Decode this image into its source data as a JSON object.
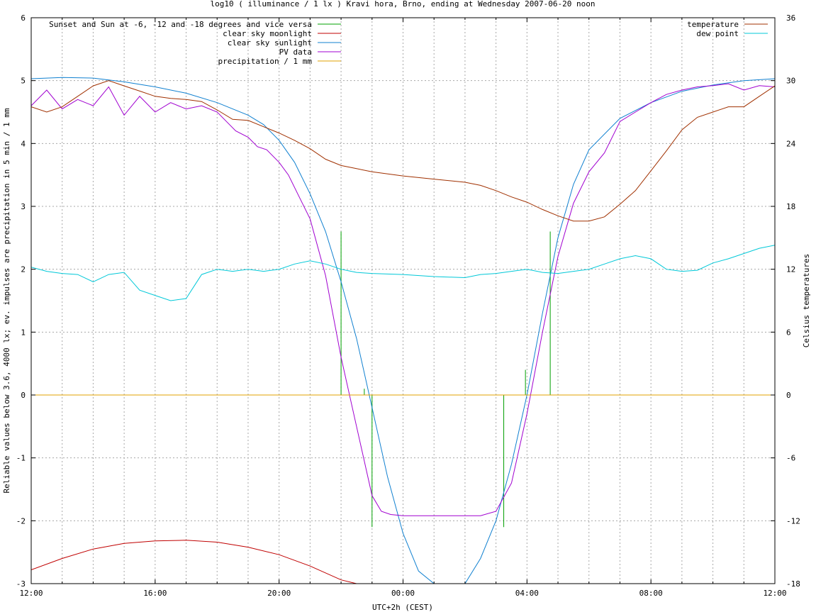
{
  "chart_data": {
    "type": "line",
    "title": "log10 ( illuminance / 1 lx ) Kravi hora, Brno, ending at Wednesday 2007-06-20 noon",
    "xlabel": "UTC+2h (CEST)",
    "ylabel": "Reliable values below 3.6, 4000 lx; ev. impulses are precipitation in 5 min / 1 mm",
    "y2label": "Celsius temperatures",
    "x_unit": "hours since 12:00 (UTC+2h)",
    "xlim": [
      0,
      24
    ],
    "ylim": [
      -3,
      6
    ],
    "y2lim": [
      -18,
      36
    ],
    "x_ticks": [
      {
        "x": 0,
        "label": "12:00"
      },
      {
        "x": 4,
        "label": "16:00"
      },
      {
        "x": 8,
        "label": "20:00"
      },
      {
        "x": 12,
        "label": "00:00"
      },
      {
        "x": 16,
        "label": "04:00"
      },
      {
        "x": 20,
        "label": "08:00"
      },
      {
        "x": 24,
        "label": "12:00"
      }
    ],
    "y_ticks": [
      -3,
      -2,
      -1,
      0,
      1,
      2,
      3,
      4,
      5,
      6
    ],
    "y2_ticks": [
      -18,
      -12,
      -6,
      0,
      6,
      12,
      18,
      24,
      30,
      36
    ],
    "grid": true,
    "legend_left": "top-left",
    "legend_right": "top-right",
    "series": [
      {
        "name": "Sunset and Sun at -6, -12 and -18 degrees and vice versa",
        "color": "#00a000",
        "axis": "y",
        "kind": "impulse",
        "impulses": [
          {
            "x": 10.0,
            "y": 2.6
          },
          {
            "x": 10.75,
            "y": 0.1
          },
          {
            "x": 11.0,
            "y": -2.1
          },
          {
            "x": 15.25,
            "y": -2.1
          },
          {
            "x": 15.95,
            "y": 0.4
          },
          {
            "x": 16.75,
            "y": 2.6
          }
        ]
      },
      {
        "name": "clear sky moonlight",
        "color": "#c00000",
        "axis": "y",
        "x": [
          0,
          1,
          2,
          3,
          4,
          5,
          6,
          7,
          8,
          9,
          10,
          10.5
        ],
        "y": [
          -2.78,
          -2.6,
          -2.45,
          -2.36,
          -2.32,
          -2.31,
          -2.34,
          -2.42,
          -2.54,
          -2.72,
          -2.94,
          -3.0
        ]
      },
      {
        "name": "clear sky sunlight",
        "color": "#1080d0",
        "axis": "y",
        "x": [
          0,
          1,
          2,
          3,
          4,
          5,
          6,
          7,
          7.5,
          8,
          8.5,
          9,
          9.5,
          10,
          10.5,
          11,
          11.5,
          12,
          12.5,
          13,
          13.5,
          14,
          14.5,
          15,
          15.5,
          16,
          16.5,
          17,
          17.5,
          18,
          19,
          20,
          21,
          22,
          23,
          24
        ],
        "y": [
          5.03,
          5.05,
          5.04,
          4.98,
          4.9,
          4.8,
          4.65,
          4.45,
          4.3,
          4.05,
          3.7,
          3.2,
          2.6,
          1.8,
          0.9,
          -0.2,
          -1.3,
          -2.2,
          -2.8,
          -3.0,
          -3.0,
          -3.0,
          -2.6,
          -2.0,
          -1.1,
          0.0,
          1.3,
          2.5,
          3.35,
          3.9,
          4.4,
          4.65,
          4.83,
          4.93,
          5.0,
          5.03
        ]
      },
      {
        "name": "PV data",
        "color": "#a000d0",
        "axis": "y",
        "x": [
          0,
          0.5,
          1,
          1.5,
          2,
          2.5,
          3,
          3.5,
          4,
          4.5,
          5,
          5.5,
          6,
          6.3,
          6.6,
          7,
          7.3,
          7.6,
          8,
          8.3,
          8.6,
          9,
          9.5,
          10,
          10.5,
          11,
          11.3,
          11.6,
          12,
          12.5,
          13,
          13.5,
          14,
          14.5,
          15,
          15.5,
          16,
          16.5,
          17,
          17.5,
          18,
          18.5,
          19,
          19.5,
          20,
          20.5,
          21,
          21.5,
          22,
          22.5,
          23,
          23.5,
          24
        ],
        "y": [
          4.6,
          4.85,
          4.55,
          4.7,
          4.6,
          4.9,
          4.45,
          4.75,
          4.5,
          4.65,
          4.55,
          4.6,
          4.5,
          4.35,
          4.2,
          4.1,
          3.95,
          3.9,
          3.7,
          3.5,
          3.2,
          2.8,
          1.9,
          0.6,
          -0.5,
          -1.6,
          -1.85,
          -1.9,
          -1.92,
          -1.92,
          -1.92,
          -1.92,
          -1.92,
          -1.92,
          -1.85,
          -1.4,
          -0.3,
          1.0,
          2.2,
          3.05,
          3.55,
          3.85,
          4.35,
          4.5,
          4.65,
          4.78,
          4.85,
          4.9,
          4.92,
          4.95,
          4.85,
          4.92,
          4.9
        ]
      },
      {
        "name": "precipitation / 1 mm",
        "color": "#e0a000",
        "axis": "y",
        "x": [
          0,
          24
        ],
        "y": [
          0,
          0
        ]
      },
      {
        "name": "temperature",
        "color": "#a03000",
        "axis": "y2",
        "x": [
          0,
          0.5,
          1,
          1.5,
          2,
          2.5,
          3,
          3.5,
          4,
          4.5,
          5,
          5.5,
          6,
          6.5,
          7,
          7.5,
          8,
          8.5,
          9,
          9.5,
          10,
          10.5,
          11,
          12,
          13,
          14,
          14.5,
          15,
          15.5,
          16,
          16.5,
          17,
          17.5,
          18,
          18.5,
          19,
          19.5,
          20,
          20.5,
          21,
          21.5,
          22,
          22.5,
          23,
          23.5,
          24
        ],
        "y": [
          27.5,
          27.0,
          27.5,
          28.5,
          29.5,
          30.0,
          29.5,
          29.0,
          28.5,
          28.3,
          28.2,
          28.0,
          27.2,
          26.3,
          26.2,
          25.6,
          25.0,
          24.3,
          23.5,
          22.5,
          21.9,
          21.6,
          21.3,
          20.9,
          20.6,
          20.3,
          20.0,
          19.5,
          18.9,
          18.4,
          17.7,
          17.1,
          16.6,
          16.6,
          17.0,
          18.2,
          19.5,
          21.4,
          23.3,
          25.3,
          26.5,
          27.0,
          27.5,
          27.5,
          28.5,
          29.5
        ]
      },
      {
        "name": "dew point",
        "color": "#00c8d8",
        "axis": "y2",
        "x": [
          0,
          0.5,
          1,
          1.5,
          2,
          2.5,
          3,
          3.5,
          4,
          4.5,
          5,
          5.5,
          6,
          6.5,
          7,
          7.5,
          8,
          8.5,
          9,
          9.5,
          10,
          10.5,
          11,
          12,
          13,
          14,
          14.5,
          15,
          15.5,
          16,
          16.5,
          17,
          17.5,
          18,
          18.5,
          19,
          19.5,
          20,
          20.5,
          21,
          21.5,
          22,
          22.5,
          23,
          23.5,
          24
        ],
        "y": [
          12.2,
          11.8,
          11.6,
          11.5,
          10.8,
          11.5,
          11.7,
          10.0,
          9.5,
          9.0,
          9.2,
          11.5,
          12.0,
          11.8,
          12.0,
          11.8,
          12.0,
          12.5,
          12.8,
          12.5,
          12.0,
          11.7,
          11.6,
          11.5,
          11.3,
          11.2,
          11.5,
          11.6,
          11.8,
          12.0,
          11.7,
          11.6,
          11.8,
          12.0,
          12.5,
          13.0,
          13.3,
          13.0,
          12.0,
          11.8,
          11.9,
          12.6,
          13.0,
          13.5,
          14.0,
          14.3
        ]
      }
    ]
  }
}
